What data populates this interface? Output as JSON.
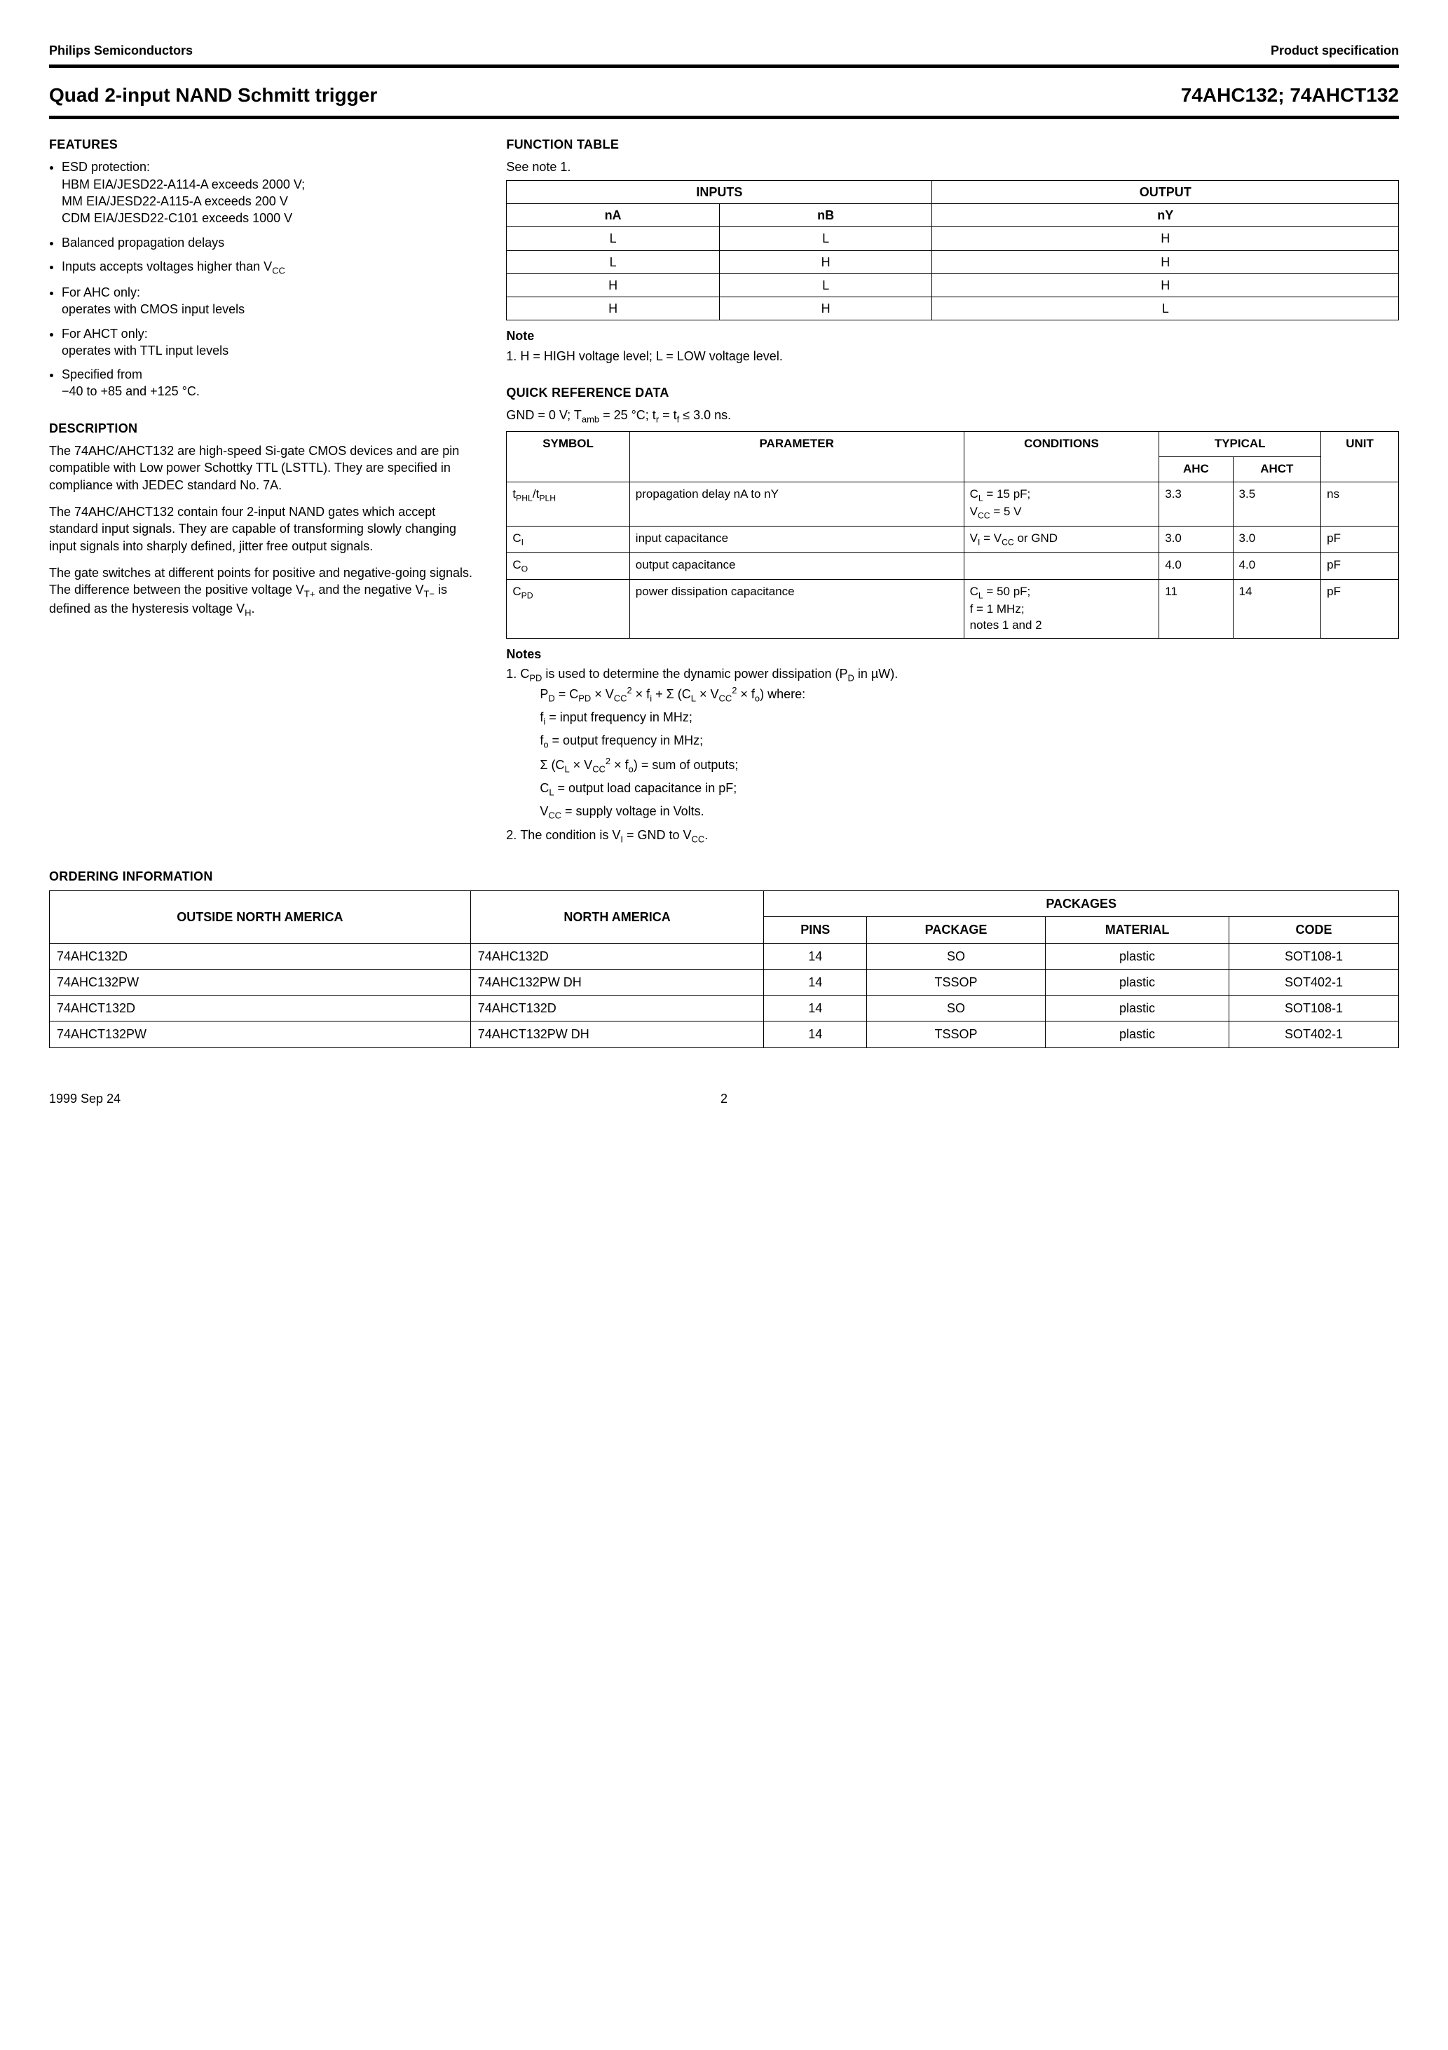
{
  "header": {
    "left": "Philips Semiconductors",
    "right": "Product specification"
  },
  "title": {
    "left": "Quad 2-input NAND Schmitt trigger",
    "right": "74AHC132; 74AHCT132"
  },
  "features": {
    "heading": "FEATURES",
    "items": [
      "ESD protection:\nHBM EIA/JESD22-A114-A exceeds 2000 V;\nMM EIA/JESD22-A115-A exceeds 200 V\nCDM EIA/JESD22-C101 exceeds 1000 V",
      "Balanced propagation delays",
      "Inputs accepts voltages higher than V_CC",
      "For AHC only:\noperates with CMOS input levels",
      "For AHCT only:\noperates with TTL input levels",
      "Specified from\n−40 to +85 and +125 °C."
    ]
  },
  "description": {
    "heading": "DESCRIPTION",
    "p1": "The 74AHC/AHCT132 are high-speed Si-gate CMOS devices and are pin compatible with Low power Schottky TTL (LSTTL). They are specified in compliance with JEDEC standard No. 7A.",
    "p2": "The 74AHC/AHCT132 contain four 2-input NAND gates which accept standard input signals. They are capable of transforming slowly changing input signals into sharply defined, jitter free output signals.",
    "p3_pre": "The gate switches at different points for positive and negative-going signals. The difference between the positive voltage V",
    "p3_mid": " and the negative V",
    "p3_post": " is defined as the hysteresis voltage V",
    "p3_end": "."
  },
  "func": {
    "heading": "FUNCTION TABLE",
    "see": "See note 1.",
    "inputs": "INPUTS",
    "output": "OUTPUT",
    "nA": "nA",
    "nB": "nB",
    "nY": "nY",
    "rows": [
      [
        "L",
        "L",
        "H"
      ],
      [
        "L",
        "H",
        "H"
      ],
      [
        "H",
        "L",
        "H"
      ],
      [
        "H",
        "H",
        "L"
      ]
    ],
    "note_head": "Note",
    "note1": "H = HIGH voltage level; L = LOW voltage level."
  },
  "qref": {
    "heading": "QUICK REFERENCE DATA",
    "cond_line_pre": "GND = 0 V; T",
    "cond_line_mid": " = 25 °C; t",
    "cond_line_mid2": " = t",
    "cond_line_post": " ≤ 3.0 ns.",
    "h_symbol": "SYMBOL",
    "h_param": "PARAMETER",
    "h_cond": "CONDITIONS",
    "h_typ": "TYPICAL",
    "h_unit": "UNIT",
    "h_ahc": "AHC",
    "h_ahct": "AHCT",
    "rows": [
      {
        "sym_html": "t<span class='sub'>PHL</span>/t<span class='sub'>PLH</span>",
        "param": "propagation delay nA to nY",
        "cond_html": "C<span class='sub'>L</span> = 15 pF;<br>V<span class='sub'>CC</span> = 5 V",
        "ahc": "3.3",
        "ahct": "3.5",
        "unit": "ns"
      },
      {
        "sym_html": "C<span class='sub'>I</span>",
        "param": "input capacitance",
        "cond_html": "V<span class='sub'>I</span> = V<span class='sub'>CC</span> or GND",
        "ahc": "3.0",
        "ahct": "3.0",
        "unit": "pF"
      },
      {
        "sym_html": "C<span class='sub'>O</span>",
        "param": "output capacitance",
        "cond_html": "",
        "ahc": "4.0",
        "ahct": "4.0",
        "unit": "pF"
      },
      {
        "sym_html": "C<span class='sub'>PD</span>",
        "param": "power dissipation capacitance",
        "cond_html": "C<span class='sub'>L</span> = 50 pF;<br>f = 1 MHz;<br>notes 1 and 2",
        "ahc": "11",
        "ahct": "14",
        "unit": "pF"
      }
    ],
    "notes_head": "Notes",
    "n1_a": "C_PD is used to determine the dynamic power dissipation (P_D in µW).",
    "n1_b": "P_D = C_PD × V_CC^2 × f_i + Σ (C_L × V_CC^2 × f_o) where:",
    "n1_c": "f_i = input frequency in MHz;",
    "n1_d": "f_o = output frequency in MHz;",
    "n1_e": "Σ (C_L × V_CC^2 × f_o) = sum of outputs;",
    "n1_f": "C_L = output load capacitance in pF;",
    "n1_g": "V_CC = supply voltage in Volts.",
    "n2": "The condition is V_I = GND to V_CC."
  },
  "order": {
    "heading": "ORDERING INFORMATION",
    "h_out": "OUTSIDE NORTH AMERICA",
    "h_na": "NORTH AMERICA",
    "h_pack": "PACKAGES",
    "h_pins": "PINS",
    "h_pkg": "PACKAGE",
    "h_mat": "MATERIAL",
    "h_code": "CODE",
    "rows": [
      [
        "74AHC132D",
        "74AHC132D",
        "14",
        "SO",
        "plastic",
        "SOT108-1"
      ],
      [
        "74AHC132PW",
        "74AHC132PW DH",
        "14",
        "TSSOP",
        "plastic",
        "SOT402-1"
      ],
      [
        "74AHCT132D",
        "74AHCT132D",
        "14",
        "SO",
        "plastic",
        "SOT108-1"
      ],
      [
        "74AHCT132PW",
        "74AHCT132PW DH",
        "14",
        "TSSOP",
        "plastic",
        "SOT402-1"
      ]
    ]
  },
  "footer": {
    "date": "1999 Sep 24",
    "page": "2"
  }
}
